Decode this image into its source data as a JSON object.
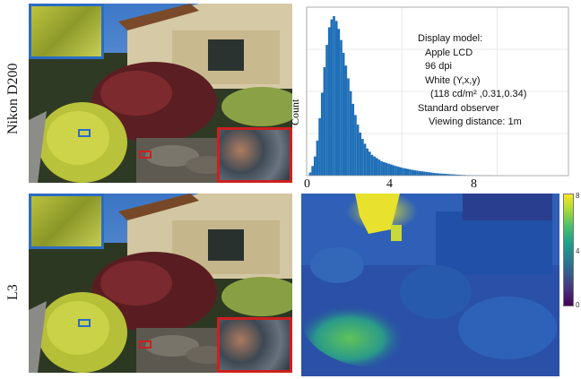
{
  "row_labels": {
    "top": "Nikon D200",
    "bottom": "L3"
  },
  "histogram": {
    "ylabel": "Count",
    "x_ticks": [
      "0",
      "4",
      "8"
    ],
    "legend": [
      "Display model:",
      "Apple LCD",
      "96 dpi",
      "White (Y,x,y)",
      "(118 cd/m² ,0.31,0.34)",
      "Standard observer",
      "Viewing distance: 1m"
    ]
  },
  "chart_data": {
    "type": "bar",
    "xlim": [
      0,
      11
    ],
    "x_ticks": [
      0,
      4,
      8
    ],
    "bin_width": 0.1,
    "x_start": 0.05,
    "values": [
      0,
      0.02,
      0.06,
      0.12,
      0.22,
      0.36,
      0.52,
      0.68,
      0.82,
      0.93,
      0.98,
      1.0,
      0.97,
      0.92,
      0.85,
      0.77,
      0.69,
      0.61,
      0.53,
      0.45,
      0.38,
      0.32,
      0.27,
      0.23,
      0.2,
      0.17,
      0.15,
      0.13,
      0.12,
      0.11,
      0.1,
      0.09,
      0.085,
      0.08,
      0.075,
      0.07,
      0.065,
      0.06,
      0.056,
      0.052,
      0.048,
      0.045,
      0.042,
      0.039,
      0.036,
      0.033,
      0.031,
      0.029,
      0.027,
      0.025,
      0.023,
      0.021,
      0.019,
      0.017,
      0.015,
      0.014,
      0.013,
      0.012,
      0.011,
      0.01,
      0.009,
      0.008,
      0.007,
      0.006,
      0.005,
      0.004,
      0.004,
      0.003,
      0.003,
      0.002,
      0.002,
      0.002,
      0.001,
      0.001,
      0.001,
      0.001,
      0.001,
      0.001,
      0,
      0
    ],
    "grid": true,
    "bar_color": "#1f6fb8"
  },
  "colorbar": {
    "ticks": [
      "8",
      "4",
      "0"
    ]
  },
  "colors": {
    "blue_marker": "#2b6cc4",
    "red_marker": "#cc2020"
  }
}
